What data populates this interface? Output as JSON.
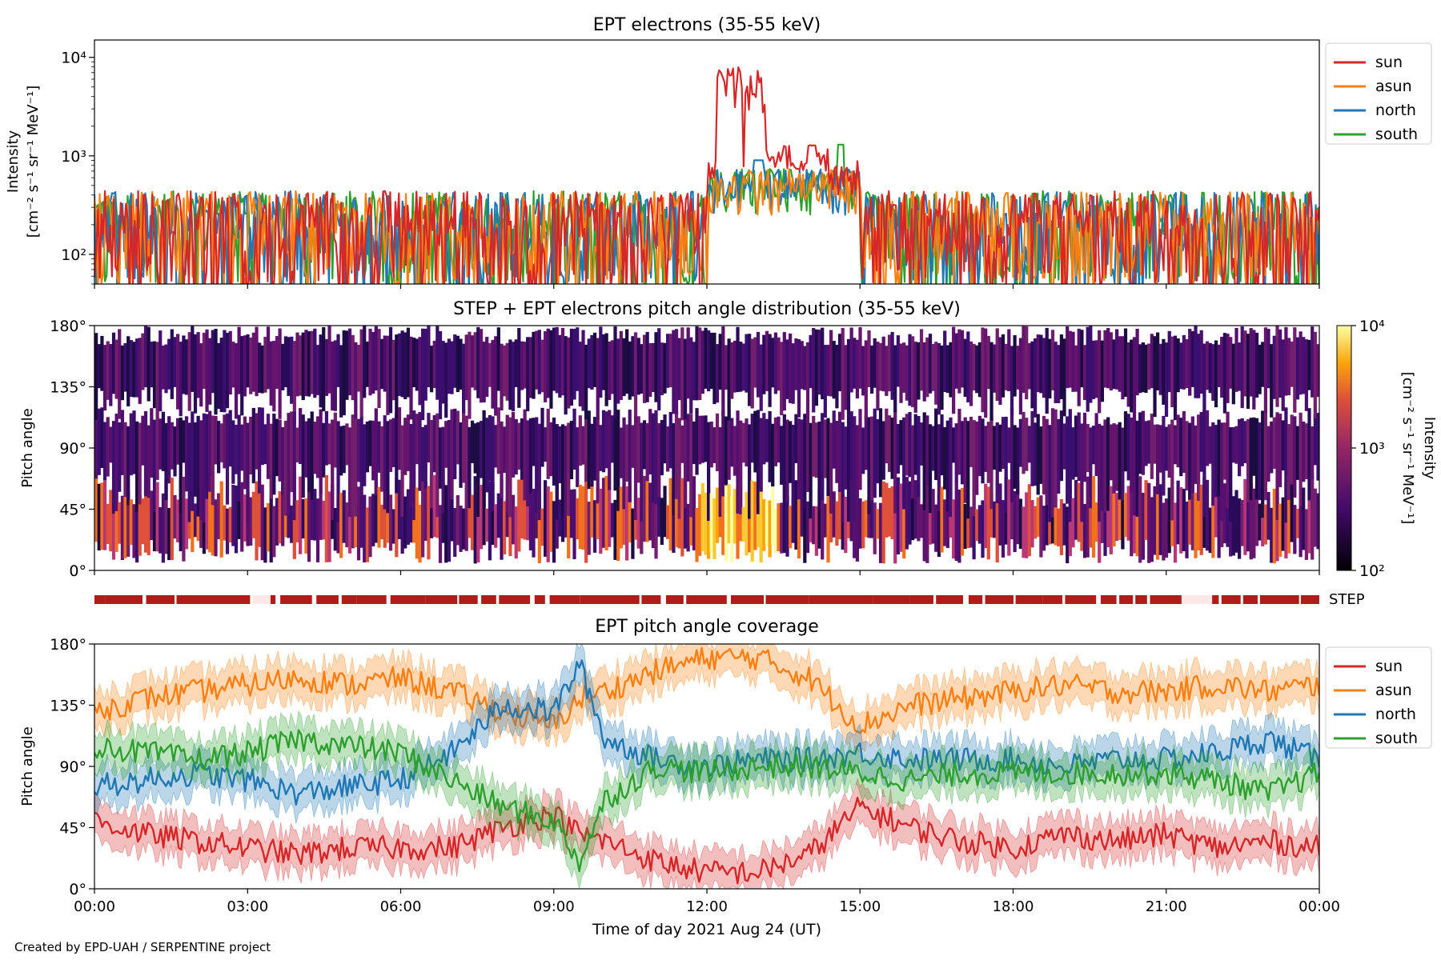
{
  "footer": "Created by EPD-UAH / SERPENTINE project",
  "xlabel": "Time of day 2021 Aug 24 (UT)",
  "x_ticks": [
    "00:00",
    "03:00",
    "06:00",
    "09:00",
    "12:00",
    "15:00",
    "18:00",
    "21:00",
    "00:00"
  ],
  "colors": {
    "sun": "#d62728",
    "asun": "#ff7f0e",
    "north": "#1f77b4",
    "south": "#2ca02c",
    "step_bar": "#b01c1c"
  },
  "chart_data": [
    {
      "id": "ept-electrons",
      "type": "line",
      "title": "EPT electrons (35-55 keV)",
      "ylabel": [
        "Intensity",
        "[cm⁻² s⁻¹ sr⁻¹ MeV⁻¹]"
      ],
      "yscale": "log",
      "ylim": [
        50,
        15000
      ],
      "y_ticks": [
        "10²",
        "10³",
        "10⁴"
      ],
      "xlim_hours": [
        0,
        24
      ],
      "legend": "outside-right",
      "series": [
        {
          "name": "sun",
          "description": "noisy ~50-500 background; peaks ~8000 at 12:25 and ~7500 at 12:55; ~1300 around 13:20"
        },
        {
          "name": "asun",
          "description": "noisy ~50-500 background, ~700 near 13:30"
        },
        {
          "name": "north",
          "description": "noisy ~50-600 background, ~1000 near 13:00"
        },
        {
          "name": "south",
          "description": "noisy ~50-700 background, ~1300 near 14:40"
        }
      ],
      "key_points": [
        {
          "series": "sun",
          "x": "12:25",
          "y": 8000
        },
        {
          "series": "sun",
          "x": "12:55",
          "y": 7500
        },
        {
          "series": "sun",
          "x": "13:20",
          "y": 1300
        },
        {
          "series": "south",
          "x": "14:40",
          "y": 1300
        }
      ]
    },
    {
      "id": "pitch-angle-distribution",
      "type": "heatmap",
      "title": "STEP + EPT electrons pitch angle distribution (35-55 keV)",
      "ylabel": "Pitch angle",
      "ylim": [
        0,
        180
      ],
      "y_ticks": [
        "0°",
        "45°",
        "90°",
        "135°",
        "180°"
      ],
      "colormap": "inferno",
      "colorbar": {
        "label": [
          "Intensity",
          "[cm⁻² s⁻¹ sr⁻¹ MeV⁻¹]"
        ],
        "scale": "log",
        "range": [
          100,
          10000
        ],
        "ticks": [
          "10²",
          "10³",
          "10⁴"
        ]
      },
      "notes": "highest intensity (yellow) at 0-20° between 12:00 and 13:30"
    },
    {
      "id": "step-coverage",
      "type": "bar",
      "label": "STEP",
      "description": "availability strip, mostly present with gaps around 03:10 and 21:30"
    },
    {
      "id": "ept-coverage",
      "type": "line",
      "title": "EPT pitch angle coverage",
      "ylabel": "Pitch angle",
      "ylim": [
        0,
        180
      ],
      "y_ticks": [
        "0°",
        "45°",
        "90°",
        "135°",
        "180°"
      ],
      "legend": "outside-right",
      "series": [
        {
          "name": "sun",
          "hours": [
            0,
            1,
            2,
            3,
            4,
            5,
            6,
            7,
            8,
            9,
            9.5,
            10,
            11,
            12,
            13,
            14,
            15,
            16,
            17,
            18,
            19,
            20,
            21,
            22,
            23,
            24
          ],
          "values": [
            50,
            40,
            35,
            30,
            25,
            30,
            30,
            30,
            45,
            55,
            40,
            35,
            20,
            12,
            12,
            25,
            60,
            45,
            35,
            30,
            40,
            35,
            40,
            30,
            35,
            30
          ]
        },
        {
          "name": "asun",
          "hours": [
            0,
            1,
            2,
            3,
            4,
            5,
            6,
            7,
            8,
            9,
            9.5,
            10,
            11,
            12,
            13,
            14,
            15,
            16,
            17,
            18,
            19,
            20,
            21,
            22,
            23,
            24
          ],
          "values": [
            130,
            140,
            145,
            150,
            155,
            150,
            155,
            145,
            130,
            120,
            140,
            145,
            160,
            170,
            170,
            155,
            120,
            135,
            140,
            145,
            150,
            145,
            145,
            150,
            145,
            150
          ]
        },
        {
          "name": "north",
          "hours": [
            0,
            1,
            2,
            3,
            4,
            5,
            6,
            7,
            8,
            9,
            9.5,
            10,
            11,
            12,
            13,
            14,
            15,
            16,
            17,
            18,
            19,
            20,
            21,
            22,
            23,
            24
          ],
          "values": [
            75,
            80,
            85,
            80,
            70,
            75,
            80,
            100,
            135,
            130,
            165,
            110,
            95,
            90,
            95,
            95,
            100,
            95,
            95,
            95,
            90,
            95,
            95,
            100,
            110,
            95
          ]
        },
        {
          "name": "south",
          "hours": [
            0,
            1,
            2,
            3,
            4,
            5,
            6,
            7,
            8,
            9,
            9.5,
            10,
            11,
            12,
            13,
            14,
            15,
            16,
            17,
            18,
            19,
            20,
            21,
            22,
            23,
            24
          ],
          "values": [
            105,
            100,
            95,
            100,
            110,
            105,
            100,
            80,
            60,
            50,
            20,
            65,
            90,
            85,
            90,
            90,
            85,
            80,
            85,
            85,
            85,
            85,
            85,
            80,
            70,
            85
          ]
        }
      ]
    }
  ]
}
